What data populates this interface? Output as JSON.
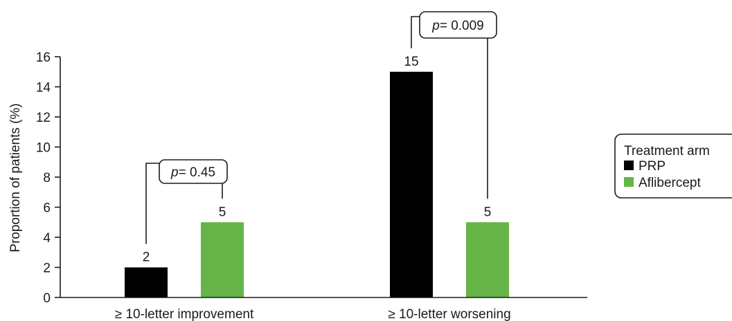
{
  "chart_data": {
    "type": "bar",
    "ylabel": "Proportion of patients (%)",
    "ylim": [
      0,
      16
    ],
    "yticks": [
      0,
      2,
      4,
      6,
      8,
      10,
      12,
      14,
      16
    ],
    "categories": [
      "≥ 10-letter improvement",
      "≥ 10-letter worsening"
    ],
    "series": [
      {
        "name": "PRP",
        "color": "#000000",
        "values": [
          2,
          15
        ]
      },
      {
        "name": "Aflibercept",
        "color": "#66b447",
        "values": [
          5,
          5
        ]
      }
    ],
    "data_labels": [
      [
        "2",
        "15"
      ],
      [
        "5",
        "5"
      ]
    ],
    "annotations": [
      {
        "category_index": 0,
        "p_symbol": "p",
        "p_text": "= 0.45"
      },
      {
        "category_index": 1,
        "p_symbol": "p",
        "p_text": "= 0.009"
      }
    ],
    "legend": {
      "title": "Treatment arm",
      "placement": "right",
      "items": [
        "PRP",
        "Aflibercept"
      ]
    }
  }
}
